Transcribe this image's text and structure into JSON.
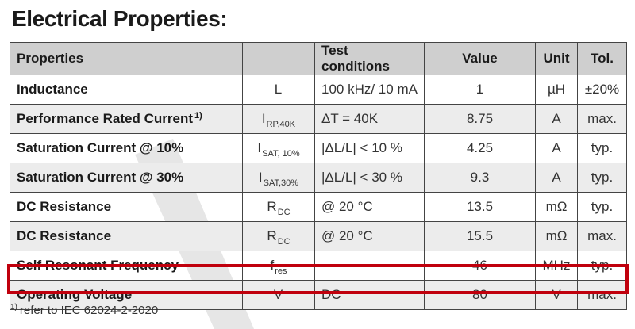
{
  "title": "Electrical Properties:",
  "table": {
    "headers": [
      "Properties",
      "",
      "Test conditions",
      "Value",
      "Unit",
      "Tol."
    ],
    "rows": [
      {
        "property": "Inductance",
        "prop_sup": "",
        "symbol": "L",
        "symbol_sub": "",
        "test": "100 kHz/ 10 mA",
        "value": "1",
        "unit": "µH",
        "tol": "±20%"
      },
      {
        "property": "Performance Rated Current",
        "prop_sup": "1)",
        "symbol": "I",
        "symbol_sub": "RP,40K",
        "test": "ΔT = 40K",
        "value": "8.75",
        "unit": "A",
        "tol": "max."
      },
      {
        "property": "Saturation Current @ 10%",
        "prop_sup": "",
        "symbol": "I",
        "symbol_sub": "SAT, 10%",
        "test": "|ΔL/L| < 10 %",
        "value": "4.25",
        "unit": "A",
        "tol": "typ."
      },
      {
        "property": "Saturation Current @ 30%",
        "prop_sup": "",
        "symbol": "I",
        "symbol_sub": "SAT,30%",
        "test": "|ΔL/L| < 30 %",
        "value": "9.3",
        "unit": "A",
        "tol": "typ."
      },
      {
        "property": "DC Resistance",
        "prop_sup": "",
        "symbol": "R",
        "symbol_sub": "DC",
        "test": "@ 20 °C",
        "value": "13.5",
        "unit": "mΩ",
        "tol": "typ."
      },
      {
        "property": "DC Resistance",
        "prop_sup": "",
        "symbol": "R",
        "symbol_sub": "DC",
        "test": "@ 20 °C",
        "value": "15.5",
        "unit": "mΩ",
        "tol": "max."
      },
      {
        "property": "Self Resonant Frequency",
        "prop_sup": "",
        "symbol": "f",
        "symbol_sub": "res",
        "test": "",
        "value": "46",
        "unit": "MHz",
        "tol": "typ."
      },
      {
        "property": "Operating Voltage",
        "prop_sup": "",
        "symbol": "V",
        "symbol_sub": "",
        "test": "DC",
        "value": "80",
        "unit": "V",
        "tol": "max."
      }
    ]
  },
  "footnote": {
    "mark": "1)",
    "text": "refer to IEC 62024-2-2020"
  },
  "colors": {
    "highlight": "#c0000d",
    "header_bg": "#cfcfcf",
    "stripe_bg": "#ececec",
    "border": "#444444"
  },
  "highlighted_row": "Operating Voltage"
}
